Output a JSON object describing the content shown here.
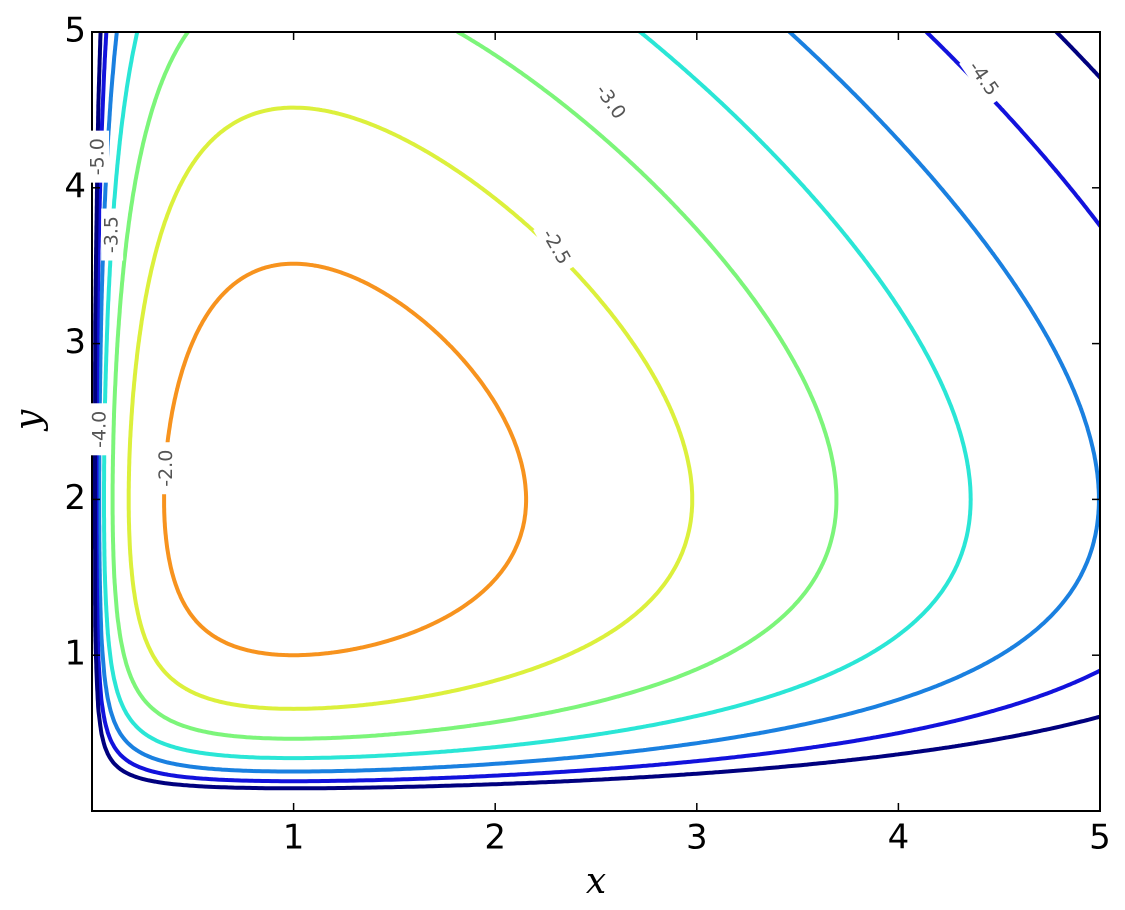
{
  "chart_data": {
    "type": "contour",
    "xlabel": "x",
    "ylabel": "y",
    "xlim": [
      0,
      5
    ],
    "ylim": [
      0,
      5
    ],
    "xticks": [
      1,
      2,
      3,
      4,
      5
    ],
    "yticks": [
      1,
      2,
      3,
      4,
      5
    ],
    "levels": [
      {
        "value": -2,
        "label": "-2.0"
      },
      {
        "value": -2.5,
        "label": "-2.5"
      },
      {
        "value": -3,
        "label": "-3.0"
      },
      {
        "value": -3.5,
        "label": "-3.5"
      },
      {
        "value": -4,
        "label": "-4.0"
      },
      {
        "value": -4.5,
        "label": "-4.5"
      },
      {
        "value": -5,
        "label": "-5.0"
      }
    ],
    "colors": [
      "#f7931e",
      "#dcf03c",
      "#7cf57a",
      "#2ae6d6",
      "#1a80e0",
      "#1212dc",
      "#00007e"
    ]
  }
}
